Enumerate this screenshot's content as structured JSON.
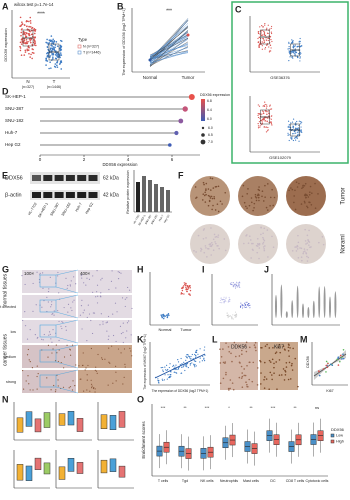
{
  "A": {
    "label": "A",
    "title": "wilcox.test p=1.7e-14",
    "y_label": "DDX56 expression",
    "sig": "****",
    "x_labels": [
      "N",
      "T"
    ],
    "n_labels": [
      "(n=327)",
      "(n=1446)"
    ],
    "legend_title": "Type",
    "legend": [
      "N (n=327)",
      "T (n=1446)"
    ]
  },
  "B": {
    "label": "B",
    "y_label": "The expression of DDX56 (log2 TPM+1)",
    "sig": "***",
    "x_labels": [
      "Normal",
      "Tumor"
    ]
  },
  "C": {
    "label": "C",
    "datasets": [
      "GSE36376",
      "GSE102079"
    ]
  },
  "D": {
    "label": "D",
    "cell_lines": [
      "SK-HEP-1",
      "SNU-387",
      "SNU-182",
      "Huh-7",
      "Hep G2"
    ],
    "values": [
      6.9,
      6.6,
      6.4,
      6.2,
      5.9
    ],
    "x_label": "DDX56 expression",
    "xticks": [
      0,
      2,
      4,
      6
    ],
    "legend_title": "DDX56 expression",
    "color_ticks": [
      "6.8",
      "6.4",
      "6.0"
    ],
    "size_ticks": [
      "6.0",
      "6.5",
      "7.0"
    ]
  },
  "E": {
    "label": "E",
    "blots": [
      "DDX56",
      "β-actin"
    ],
    "sizes": [
      "62 kDa",
      "42 kDa"
    ],
    "lanes": [
      "HL-7702",
      "SK-HEP-1",
      "SNU-387",
      "SNU-182",
      "Huh-7",
      "Hep G2"
    ],
    "bar_y_label": "Relative protein expression"
  },
  "F": {
    "label": "F",
    "rows": [
      "Tumor",
      "Noraml"
    ]
  },
  "G": {
    "label": "G",
    "groups": [
      "normal tissues",
      "cancer tissues"
    ],
    "rows": [
      "not detected",
      "low",
      "medium",
      "strong"
    ],
    "magnifications": [
      "100×",
      "400×"
    ]
  },
  "H": {
    "label": "H",
    "x_labels": [
      "Normal",
      "Tumor"
    ]
  },
  "I": {
    "label": "I"
  },
  "J": {
    "label": "J"
  },
  "K": {
    "label": "K",
    "x_label": "The expression of DDX56 (log2 TPM+1)",
    "y_label": "The expression of MKI67 (log2 TPM+1)"
  },
  "L": {
    "label": "L",
    "stains": [
      "DDX56",
      "Ki67"
    ]
  },
  "M": {
    "label": "M",
    "x_label": "Ki67",
    "y_label": "DDX56"
  },
  "N": {
    "label": "N"
  },
  "O": {
    "label": "O",
    "y_label": "Enrichment scores",
    "categories": [
      "T cells",
      "Tgd",
      "NK cells",
      "Neutrophils",
      "Mast cells",
      "DC",
      "CD8 T cells",
      "Cytotoxic cells"
    ],
    "sig": [
      "***",
      "**",
      "***",
      "*",
      "**",
      "***",
      "**",
      "ns"
    ],
    "legend_title": "DDX56",
    "legend": [
      "Low",
      "High"
    ]
  }
}
